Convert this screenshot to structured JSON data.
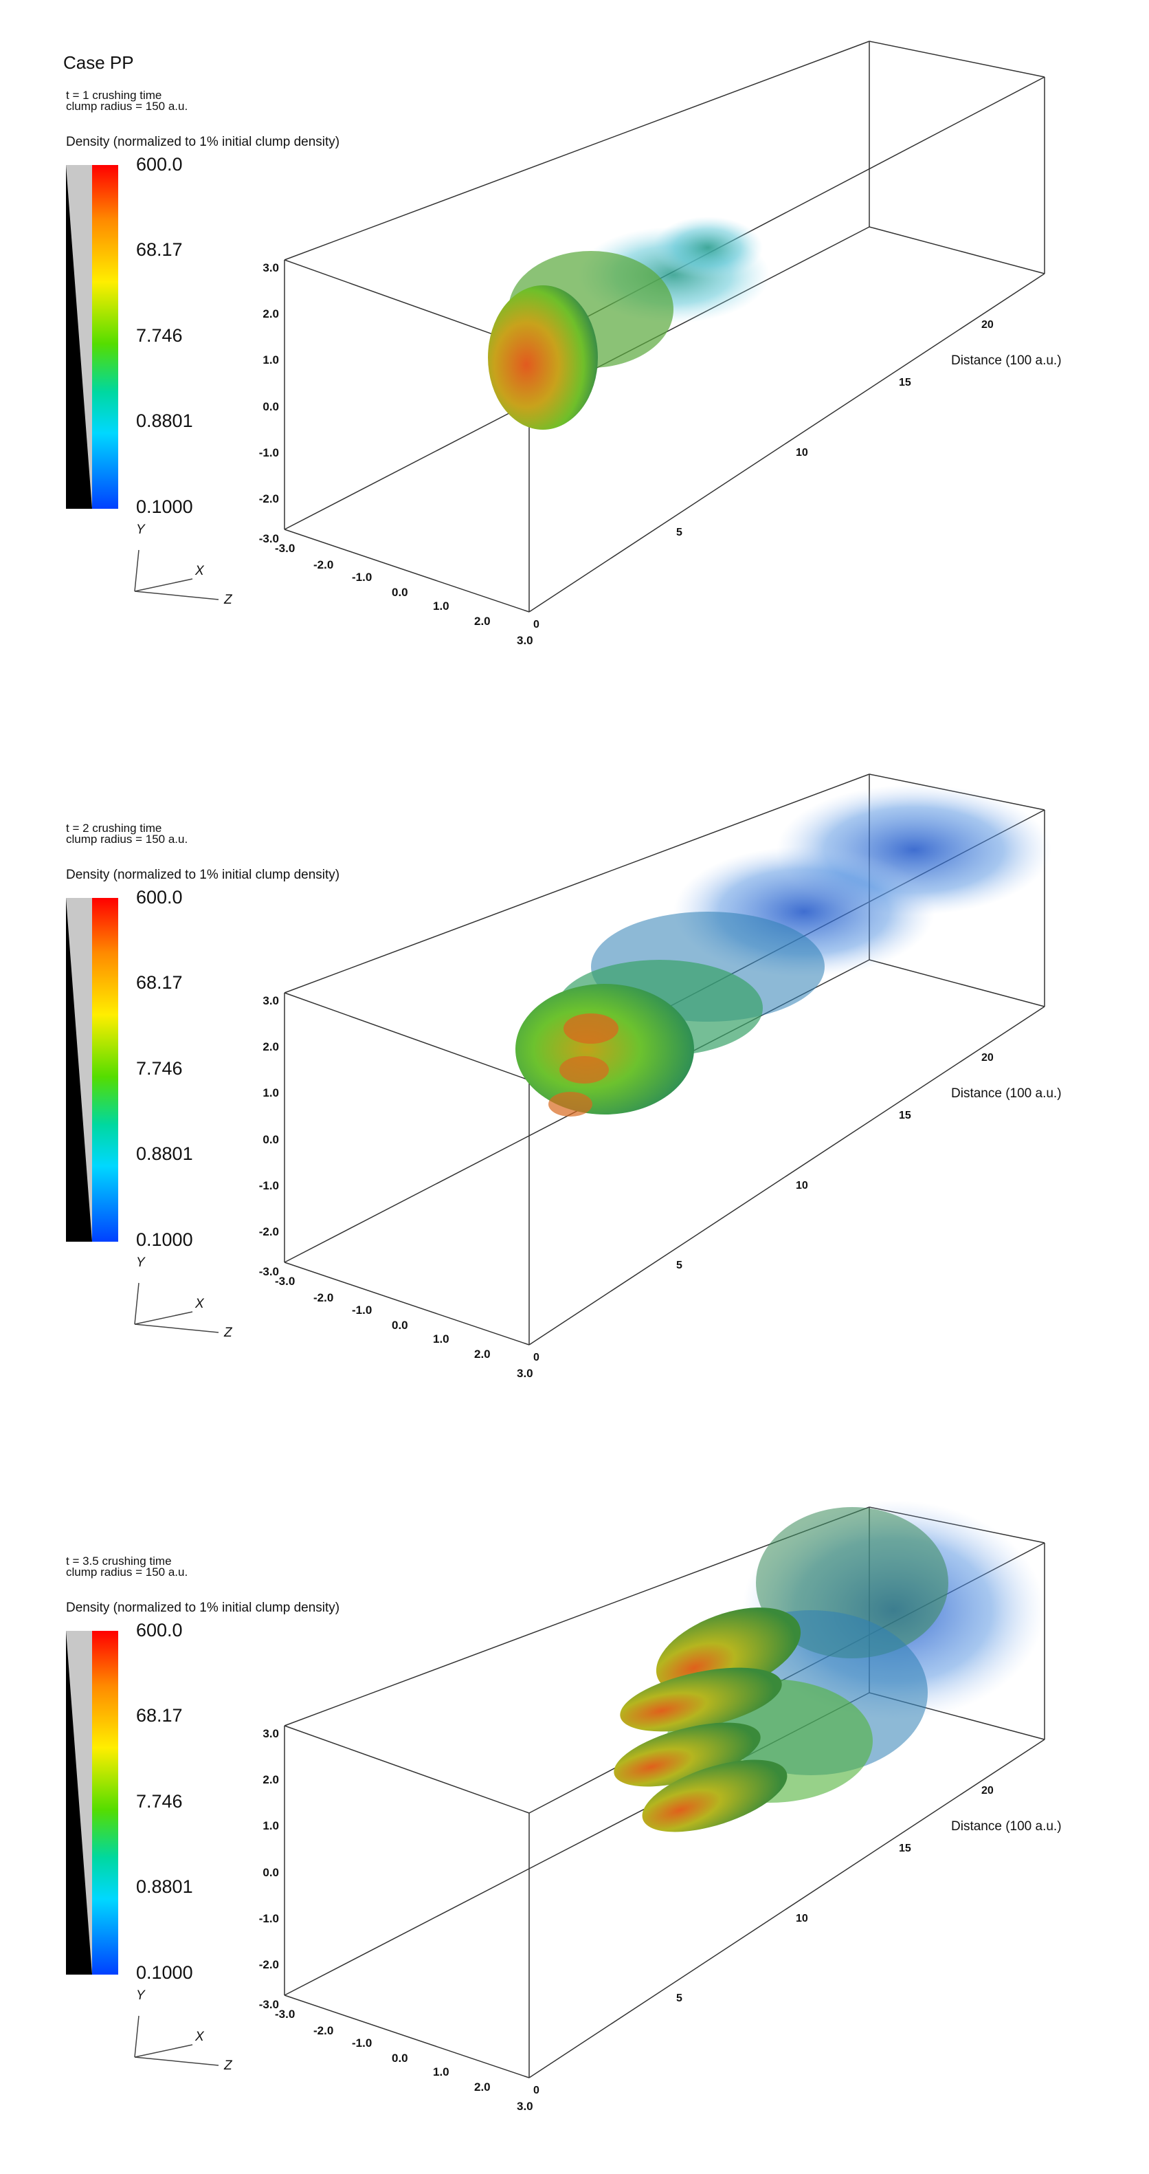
{
  "figure": {
    "case_title": "Case PP",
    "density_label": "Density (normalized to 1% initial clump density)",
    "colorbar_ticks": [
      "600.0",
      "68.17",
      "7.746",
      "0.8801",
      "0.1000"
    ],
    "axis_labels": {
      "y": "Y",
      "x": "X",
      "z": "Z"
    },
    "distance_label": "Distance (100 a.u.)",
    "y_ticks": [
      "3.0",
      "2.0",
      "1.0",
      "0.0",
      "-1.0",
      "-2.0",
      "-3.0"
    ],
    "x_ticks": [
      "-3.0",
      "-2.0",
      "-1.0",
      "0.0",
      "1.0",
      "2.0",
      "3.0"
    ],
    "z_ticks": [
      "0",
      "5",
      "10",
      "15",
      "20"
    ],
    "colors": {
      "high": "#ff0000",
      "mid": "#55dd00",
      "low": "#0040ff"
    }
  },
  "panels": [
    {
      "time": "t = 1 crushing time",
      "radius": "clump radius = 150 a.u."
    },
    {
      "time": "t = 2 crushing time",
      "radius": "clump radius = 150 a.u."
    },
    {
      "time": "t = 3.5 crushing time",
      "radius": "clump radius = 150 a.u."
    }
  ]
}
